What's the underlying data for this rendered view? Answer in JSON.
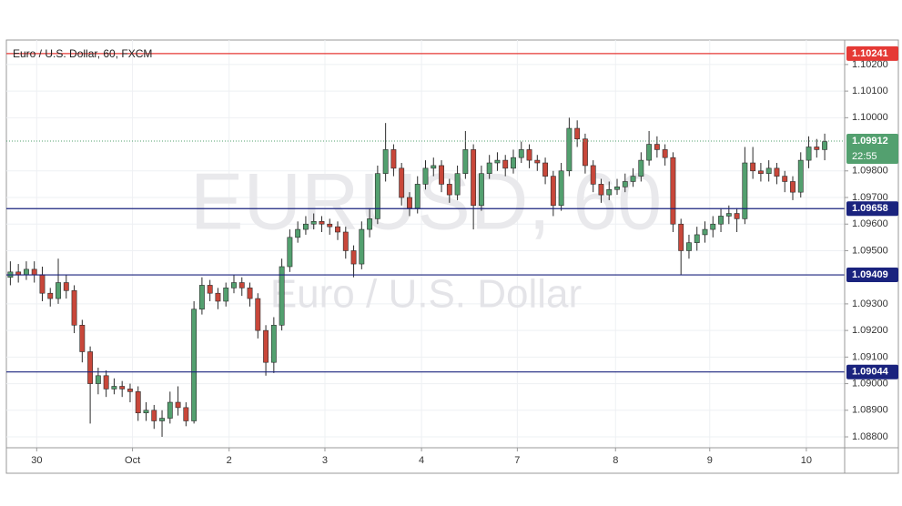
{
  "chart_data": {
    "type": "candlestick",
    "title": "Euro / U.S. Dollar, 60, FXCM",
    "watermark": "EURUSD, 60",
    "watermark_subtitle": "Euro / U.S. Dollar",
    "up_color": "#53a06f",
    "down_color": "#c8473a",
    "open": [
      1.094,
      1.0942,
      1.0941,
      1.0943,
      1.0941,
      1.0934,
      1.0932,
      1.0938,
      1.0935,
      1.0922,
      1.0912,
      1.09,
      1.0903,
      1.0898,
      1.0899,
      1.0898,
      1.0897,
      1.0889,
      1.089,
      1.0886,
      1.0887,
      1.0893,
      1.0891,
      1.0886,
      1.0928,
      1.0937,
      1.0934,
      1.0931,
      1.0936,
      1.0938,
      1.0936,
      1.0932,
      1.092,
      1.0908,
      1.0922,
      1.0944,
      1.0955,
      1.0958,
      1.096,
      1.0961,
      1.096,
      1.0959,
      1.0957,
      1.095,
      1.0945,
      1.0958,
      1.0962,
      1.0979,
      1.0988,
      1.0981,
      1.097,
      1.0966,
      1.0975,
      1.0981,
      1.0982,
      1.0975,
      1.0971,
      1.0979,
      1.0988,
      1.0967,
      1.0979,
      1.0983,
      1.0984,
      1.0981,
      1.0985,
      1.0988,
      1.0984,
      1.0983,
      1.0978,
      1.0967,
      1.098,
      1.0996,
      1.0992,
      1.0982,
      1.0975,
      1.0971,
      1.0973,
      1.0974,
      1.0976,
      1.0978,
      1.0984,
      1.099,
      1.0988,
      1.0985,
      1.096,
      1.095,
      1.0953,
      1.0956,
      1.0958,
      1.096,
      1.0963,
      1.0964,
      1.0962,
      1.0983,
      1.098,
      1.0979,
      1.0981,
      1.0978,
      1.0976,
      1.0972,
      1.0984,
      1.0989,
      1.0988
    ],
    "high": [
      1.0946,
      1.0945,
      1.0946,
      1.0946,
      1.0944,
      1.0936,
      1.0947,
      1.0941,
      1.0937,
      1.0924,
      1.0914,
      1.0906,
      1.0905,
      1.0902,
      1.0901,
      1.09,
      1.0899,
      1.0893,
      1.0892,
      1.089,
      1.0897,
      1.0899,
      1.0893,
      1.0931,
      1.094,
      1.0939,
      1.0936,
      1.0938,
      1.0941,
      1.094,
      1.0938,
      1.0934,
      1.0922,
      1.0925,
      1.0947,
      1.0958,
      1.0961,
      1.0963,
      1.0964,
      1.0963,
      1.0962,
      1.0961,
      1.0959,
      1.0952,
      1.0961,
      1.0966,
      1.0982,
      1.0998,
      1.099,
      1.0983,
      1.0972,
      1.0978,
      1.0984,
      1.0985,
      1.0984,
      1.0977,
      1.0982,
      1.0995,
      1.099,
      1.0982,
      1.0986,
      1.0987,
      1.0986,
      1.0988,
      1.0991,
      1.099,
      1.0986,
      1.0985,
      1.098,
      1.0983,
      1.1,
      1.0999,
      1.0994,
      1.0984,
      1.0977,
      1.0976,
      1.0977,
      1.0979,
      1.0981,
      1.0987,
      1.0995,
      1.0993,
      1.099,
      1.0987,
      1.0962,
      1.0956,
      1.0959,
      1.0961,
      1.0963,
      1.0966,
      1.0967,
      1.0966,
      1.0989,
      1.0989,
      1.0983,
      1.0984,
      1.0983,
      1.098,
      1.0978,
      1.0987,
      1.0993,
      1.0992,
      1.0994
    ],
    "low": [
      1.0937,
      1.0938,
      1.0939,
      1.0938,
      1.0931,
      1.0929,
      1.093,
      1.0932,
      1.0919,
      1.0908,
      1.0885,
      1.0896,
      1.0895,
      1.0896,
      1.0895,
      1.0893,
      1.0886,
      1.0886,
      1.0883,
      1.088,
      1.0885,
      1.0888,
      1.0884,
      1.0885,
      1.0926,
      1.0931,
      1.0928,
      1.0929,
      1.0934,
      1.0933,
      1.0929,
      1.0917,
      1.0903,
      1.0904,
      1.092,
      1.0942,
      1.0953,
      1.0956,
      1.0958,
      1.0957,
      1.0956,
      1.0954,
      1.0947,
      1.094,
      1.0943,
      1.0955,
      1.096,
      1.0976,
      1.0978,
      1.0967,
      1.0963,
      1.0964,
      1.0973,
      1.0978,
      1.0972,
      1.0968,
      1.0969,
      1.0977,
      1.0958,
      1.0965,
      1.0977,
      1.098,
      1.0978,
      1.0979,
      1.0983,
      1.0981,
      1.098,
      1.0975,
      1.0963,
      1.0965,
      1.0978,
      1.0989,
      1.0979,
      1.0972,
      1.0968,
      1.0969,
      1.0971,
      1.0972,
      1.0974,
      1.0976,
      1.0982,
      1.0985,
      1.0982,
      1.0957,
      1.0941,
      1.0947,
      1.095,
      1.0953,
      1.0955,
      1.0957,
      1.096,
      1.0957,
      1.096,
      1.0977,
      1.0976,
      1.0976,
      1.0975,
      1.0972,
      1.0969,
      1.097,
      1.0981,
      1.0985,
      1.0984
    ],
    "close": [
      1.0942,
      1.0941,
      1.0943,
      1.0941,
      1.0934,
      1.0932,
      1.0938,
      1.0935,
      1.0922,
      1.0912,
      1.09,
      1.0903,
      1.0898,
      1.0899,
      1.0898,
      1.0897,
      1.0889,
      1.089,
      1.0886,
      1.0887,
      1.0893,
      1.0891,
      1.0886,
      1.0928,
      1.0937,
      1.0934,
      1.0931,
      1.0936,
      1.0938,
      1.0936,
      1.0932,
      1.092,
      1.0908,
      1.0922,
      1.0944,
      1.0955,
      1.0958,
      1.096,
      1.0961,
      1.096,
      1.0959,
      1.0957,
      1.095,
      1.0945,
      1.0958,
      1.0962,
      1.0979,
      1.0988,
      1.0981,
      1.097,
      1.0966,
      1.0975,
      1.0981,
      1.0982,
      1.0975,
      1.0971,
      1.0979,
      1.0988,
      1.0967,
      1.0979,
      1.0983,
      1.0984,
      1.0981,
      1.0985,
      1.0988,
      1.0984,
      1.0983,
      1.0978,
      1.0967,
      1.098,
      1.0996,
      1.0992,
      1.0982,
      1.0975,
      1.0971,
      1.0973,
      1.0974,
      1.0976,
      1.0978,
      1.0984,
      1.099,
      1.0988,
      1.0985,
      1.096,
      1.095,
      1.0953,
      1.0956,
      1.0958,
      1.096,
      1.0963,
      1.0964,
      1.0962,
      1.0983,
      1.098,
      1.0979,
      1.0981,
      1.0978,
      1.0976,
      1.0972,
      1.0984,
      1.0989,
      1.0988,
      1.0991
    ],
    "xlim": [
      -0.5,
      104.5
    ],
    "xticks": [
      {
        "value": 3.3,
        "label": "30"
      },
      {
        "value": 15.3,
        "label": "Oct"
      },
      {
        "value": 27.4,
        "label": "2"
      },
      {
        "value": 39.4,
        "label": "3"
      },
      {
        "value": 51.5,
        "label": "4"
      },
      {
        "value": 63.5,
        "label": "7"
      },
      {
        "value": 75.8,
        "label": "8"
      },
      {
        "value": 87.6,
        "label": "9"
      },
      {
        "value": 99.7,
        "label": "10"
      }
    ],
    "ylim": [
      1.08759,
      1.10292
    ],
    "yticks": [
      {
        "value": 1.102,
        "label": "1.10200"
      },
      {
        "value": 1.101,
        "label": "1.10100"
      },
      {
        "value": 1.1,
        "label": "1.10000"
      },
      {
        "value": 1.098,
        "label": "1.09800"
      },
      {
        "value": 1.097,
        "label": "1.09700"
      },
      {
        "value": 1.096,
        "label": "1.09600"
      },
      {
        "value": 1.095,
        "label": "1.09500"
      },
      {
        "value": 1.093,
        "label": "1.09300"
      },
      {
        "value": 1.092,
        "label": "1.09200"
      },
      {
        "value": 1.091,
        "label": "1.09100"
      },
      {
        "value": 1.09,
        "label": "1.09000"
      },
      {
        "value": 1.089,
        "label": "1.08900"
      },
      {
        "value": 1.088,
        "label": "1.08800"
      }
    ],
    "grid": true,
    "levels": [
      {
        "value": 1.10241,
        "color": "#e53935"
      },
      {
        "value": 1.09658,
        "color": "#1a237e"
      },
      {
        "value": 1.09409,
        "color": "#1a237e"
      },
      {
        "value": 1.09044,
        "color": "#1a237e"
      }
    ],
    "current_price": 1.09912,
    "current_color": "#53a06f",
    "countdown": "22:55"
  }
}
